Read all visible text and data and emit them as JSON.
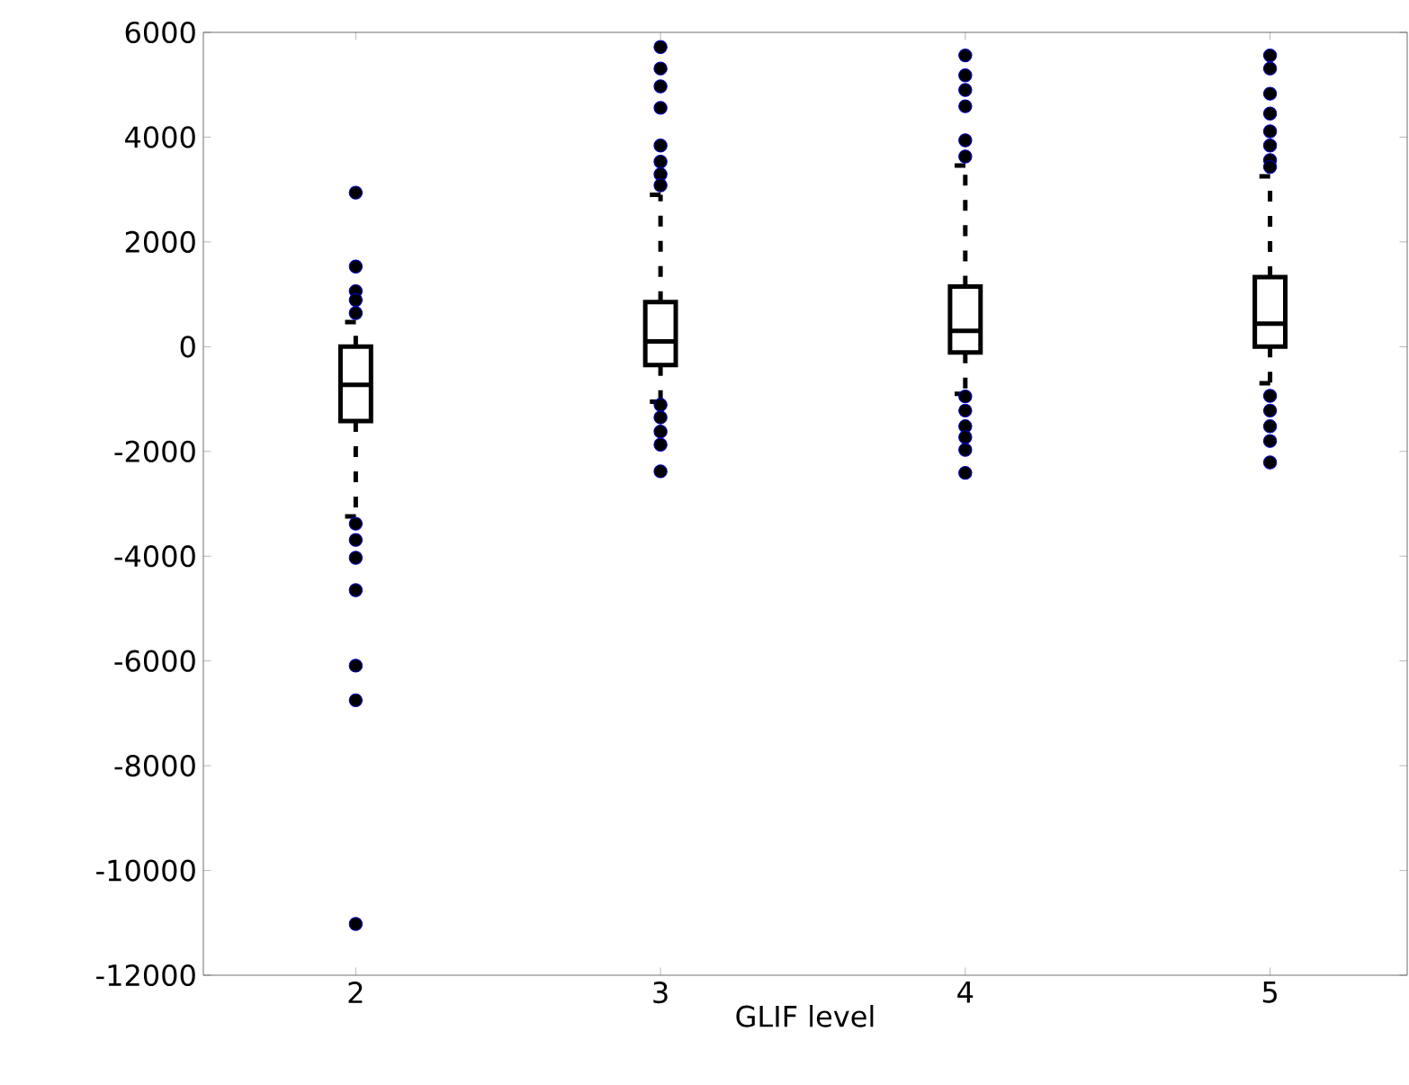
{
  "chart_data": {
    "type": "box",
    "xlabel": "GLIF level",
    "categories": [
      "2",
      "3",
      "4",
      "5"
    ],
    "boxes": [
      {
        "low": -3240,
        "q1": -1420,
        "median": -730,
        "q3": 0,
        "high": 470,
        "outliers": [
          2940,
          1530,
          1060,
          890,
          640,
          -3380,
          -3690,
          -4030,
          -4650,
          -6090,
          -6750,
          -11020
        ]
      },
      {
        "low": -1050,
        "q1": -350,
        "median": 100,
        "q3": 850,
        "high": 2900,
        "outliers": [
          5720,
          5310,
          4970,
          4560,
          3840,
          3530,
          3290,
          3080,
          -1110,
          -1350,
          -1620,
          -1870,
          -2380
        ]
      },
      {
        "low": -900,
        "q1": -110,
        "median": 300,
        "q3": 1150,
        "high": 3460,
        "outliers": [
          5560,
          5180,
          4900,
          4590,
          3940,
          3630,
          -950,
          -1220,
          -1520,
          -1730,
          -1970,
          -2410
        ]
      },
      {
        "low": -700,
        "q1": 0,
        "median": 440,
        "q3": 1330,
        "high": 3250,
        "outliers": [
          5560,
          5310,
          4830,
          4450,
          4110,
          3840,
          3560,
          3430,
          -940,
          -1220,
          -1520,
          -1800,
          -2210
        ]
      }
    ],
    "ylim": [
      -12000,
      6000
    ],
    "yticks": [
      -12000,
      -10000,
      -8000,
      -6000,
      -4000,
      -2000,
      0,
      2000,
      4000,
      6000
    ],
    "marker": "circle",
    "grid": false
  }
}
